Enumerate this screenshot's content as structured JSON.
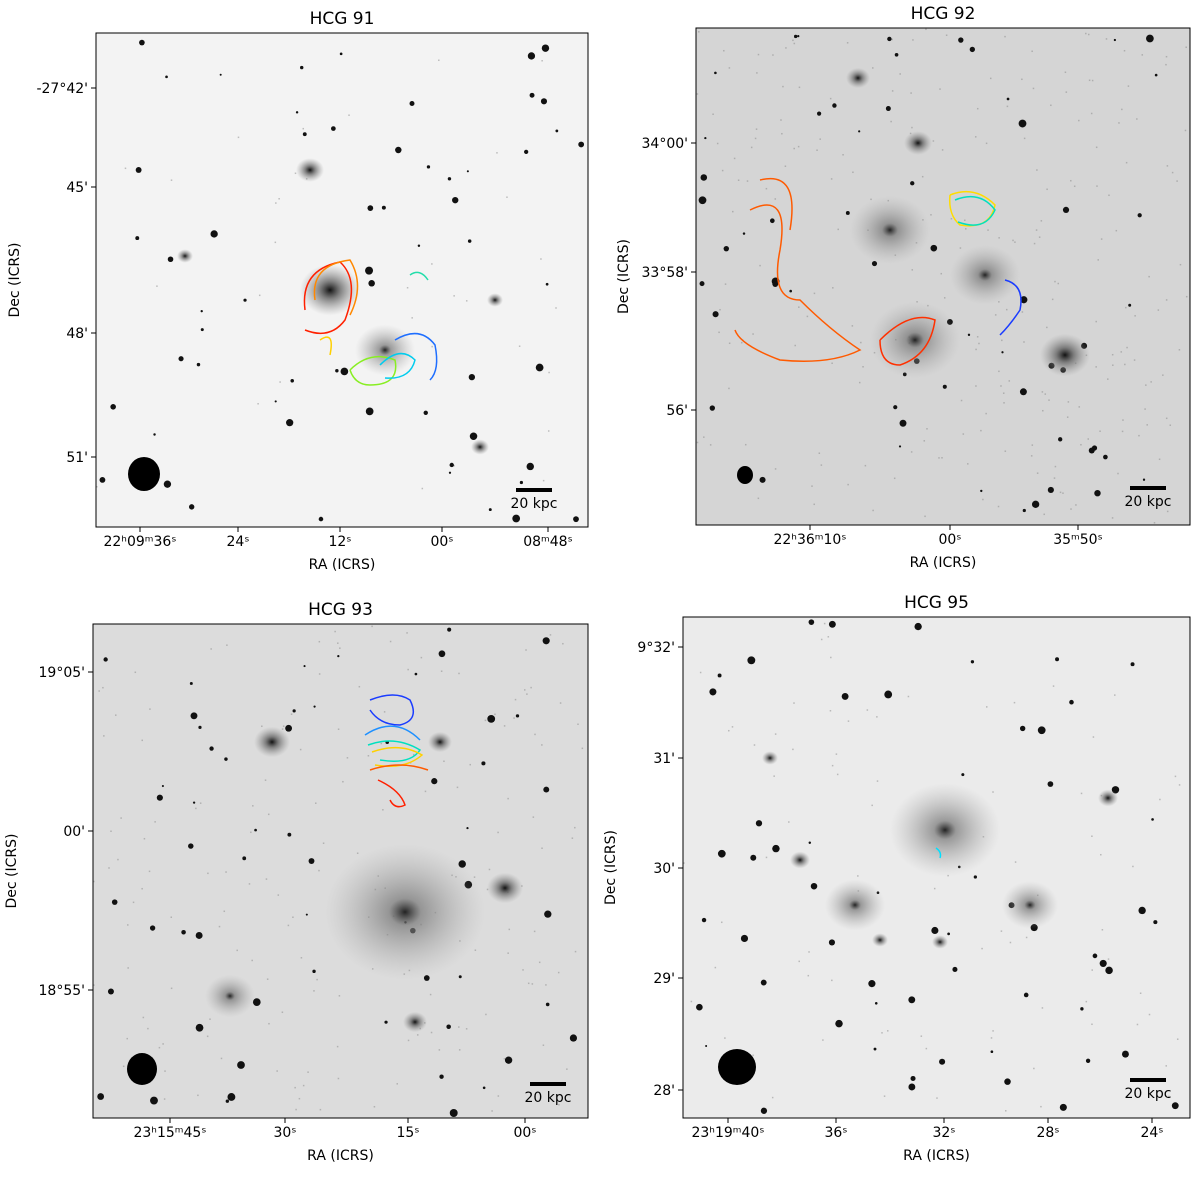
{
  "panels": [
    {
      "title": "HCG 91",
      "xlabel": "RA (ICRS)",
      "ylabel": "Dec (ICRS)",
      "xticks": [
        "22ʰ09ᵐ36ˢ",
        "24ˢ",
        "12ˢ",
        "00ˢ",
        "08ᵐ48ˢ"
      ],
      "yticks": [
        "-27°42'",
        "45'",
        "48'",
        "51'"
      ],
      "scalebar": "20 kpc"
    },
    {
      "title": "HCG 92",
      "xlabel": "RA (ICRS)",
      "ylabel": "Dec (ICRS)",
      "xticks": [
        "22ʰ36ᵐ10ˢ",
        "00ˢ",
        "35ᵐ50ˢ"
      ],
      "yticks": [
        "34°00'",
        "33°58'",
        "56'"
      ],
      "scalebar": "20 kpc"
    },
    {
      "title": "HCG 93",
      "xlabel": "RA (ICRS)",
      "ylabel": "Dec (ICRS)",
      "xticks": [
        "23ʰ15ᵐ45ˢ",
        "30ˢ",
        "15ˢ",
        "00ˢ"
      ],
      "yticks": [
        "19°05'",
        "00'",
        "18°55'"
      ],
      "scalebar": "20 kpc"
    },
    {
      "title": "HCG 95",
      "xlabel": "RA (ICRS)",
      "ylabel": "Dec (ICRS)",
      "xticks": [
        "23ʰ19ᵐ40ˢ",
        "36ˢ",
        "32ˢ",
        "28ˢ",
        "24ˢ"
      ],
      "yticks": [
        "9°32'",
        "31'",
        "30'",
        "29'",
        "28'"
      ],
      "scalebar": "20 kpc"
    }
  ]
}
